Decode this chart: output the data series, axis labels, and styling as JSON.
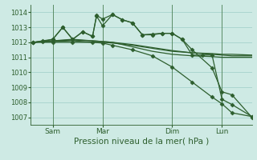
{
  "background_color": "#ceeae4",
  "grid_color": "#9ecec8",
  "line_color": "#2d5e2d",
  "vline_color": "#3a6e3a",
  "title": "Pression niveau de la mer( hPa )",
  "ylim": [
    1006.5,
    1014.5
  ],
  "yticks": [
    1007,
    1008,
    1009,
    1010,
    1011,
    1012,
    1013,
    1014
  ],
  "x_tick_labels": [
    "Sam",
    "Mar",
    "Dim",
    "Lun"
  ],
  "x_tick_positions": [
    1.0,
    3.5,
    7.0,
    9.5
  ],
  "vlines_x": [
    1.0,
    3.5,
    7.0,
    9.5
  ],
  "xlim": [
    -0.1,
    11.0
  ],
  "series": [
    {
      "x": [
        0,
        1,
        2,
        3,
        3.5,
        4,
        5,
        6,
        7,
        8,
        9,
        9.5,
        10,
        11
      ],
      "y": [
        1012.0,
        1012.05,
        1012.1,
        1012.0,
        1012.0,
        1011.95,
        1011.8,
        1011.6,
        1011.4,
        1011.3,
        1011.25,
        1011.2,
        1011.2,
        1011.15
      ],
      "marker": false,
      "linewidth": 0.9
    },
    {
      "x": [
        0,
        1,
        2,
        3,
        3.5,
        4,
        5,
        6,
        7,
        8,
        9,
        9.5,
        10,
        11
      ],
      "y": [
        1012.0,
        1012.1,
        1012.15,
        1012.1,
        1012.05,
        1012.0,
        1011.85,
        1011.65,
        1011.45,
        1011.3,
        1011.2,
        1011.15,
        1011.1,
        1011.1
      ],
      "marker": false,
      "linewidth": 0.9
    },
    {
      "x": [
        0,
        0.5,
        1,
        2,
        3,
        3.5,
        4,
        5,
        6,
        7,
        8,
        9,
        9.5,
        10,
        11
      ],
      "y": [
        1012.0,
        1012.05,
        1012.1,
        1012.2,
        1012.1,
        1012.05,
        1012.0,
        1011.7,
        1011.4,
        1011.2,
        1011.1,
        1011.05,
        1011.0,
        1011.0,
        1011.0
      ],
      "marker": false,
      "linewidth": 0.9
    },
    {
      "x": [
        0,
        1,
        2,
        3,
        3.5,
        4,
        5,
        6,
        7,
        8,
        9,
        9.5,
        10,
        11
      ],
      "y": [
        1012.0,
        1012.0,
        1012.0,
        1012.0,
        1011.95,
        1011.8,
        1011.5,
        1011.1,
        1010.35,
        1009.35,
        1008.35,
        1007.9,
        1007.3,
        1007.05
      ],
      "marker": "D",
      "linewidth": 0.9
    },
    {
      "x": [
        0,
        0.5,
        1,
        1.5,
        2,
        2.5,
        3,
        3.2,
        3.5,
        4,
        4.5,
        5,
        5.5,
        6,
        6.5,
        7,
        7.5,
        8,
        8.5,
        9,
        9.5,
        10,
        11
      ],
      "y": [
        1012.0,
        1012.1,
        1012.2,
        1013.0,
        1012.2,
        1012.7,
        1012.4,
        1013.75,
        1013.1,
        1013.85,
        1013.5,
        1013.3,
        1012.5,
        1012.5,
        1012.6,
        1012.6,
        1012.2,
        1011.15,
        1011.15,
        1011.15,
        1008.2,
        1007.85,
        1007.05
      ],
      "marker": "D",
      "linewidth": 0.9
    },
    {
      "x": [
        0,
        0.5,
        1,
        1.5,
        2,
        2.5,
        3,
        3.2,
        3.5,
        4,
        4.5,
        5,
        5.5,
        6,
        6.5,
        7,
        7.5,
        8,
        9,
        9.5,
        10,
        11
      ],
      "y": [
        1012.0,
        1012.05,
        1012.2,
        1013.0,
        1012.2,
        1012.7,
        1012.4,
        1013.8,
        1013.55,
        1013.85,
        1013.5,
        1013.3,
        1012.5,
        1012.55,
        1012.6,
        1012.6,
        1012.2,
        1011.5,
        1010.3,
        1008.7,
        1008.5,
        1007.0
      ],
      "marker": "D",
      "linewidth": 0.9
    }
  ],
  "figsize": [
    3.2,
    2.0
  ],
  "dpi": 100,
  "font_size_ytick": 6.0,
  "font_size_xtick": 6.5,
  "font_size_xlabel": 7.5,
  "marker_size": 2.5
}
